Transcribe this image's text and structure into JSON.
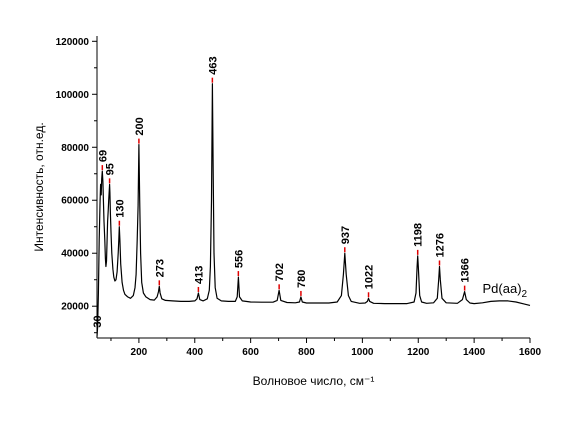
{
  "chart_data": {
    "type": "line",
    "title": "",
    "xlabel": "Волновое число, см⁻¹",
    "ylabel": "Интенсивность, отн.ед.",
    "xlim": [
      50,
      1600
    ],
    "ylim": [
      8000,
      122000
    ],
    "x_ticks": [
      200,
      400,
      600,
      800,
      1000,
      1200,
      1400,
      1600
    ],
    "x_tick_labels": [
      "200",
      "400",
      "600",
      "800",
      "1000",
      "1200",
      "1400",
      "1600"
    ],
    "y_ticks": [
      20000,
      40000,
      60000,
      80000,
      100000,
      120000
    ],
    "y_tick_labels": [
      "20000",
      "40000",
      "60000",
      "80000",
      "100000",
      "120000"
    ],
    "grid": false,
    "series_label": {
      "text": "Pd(aa)",
      "subscript": "2",
      "x": 1430,
      "y": 25000
    },
    "series": [
      {
        "points": [
          [
            50,
            8500
          ],
          [
            52,
            12000
          ],
          [
            55,
            25000
          ],
          [
            58,
            45000
          ],
          [
            61,
            60000
          ],
          [
            63,
            66000
          ],
          [
            65,
            62000
          ],
          [
            67,
            68000
          ],
          [
            69,
            71000
          ],
          [
            71,
            67000
          ],
          [
            73,
            60000
          ],
          [
            75,
            52000
          ],
          [
            78,
            45000
          ],
          [
            80,
            38000
          ],
          [
            82,
            35000
          ],
          [
            84,
            37000
          ],
          [
            86,
            45000
          ],
          [
            88,
            52000
          ],
          [
            90,
            56000
          ],
          [
            92,
            60000
          ],
          [
            94,
            64000
          ],
          [
            95,
            66000
          ],
          [
            96,
            63000
          ],
          [
            98,
            55000
          ],
          [
            100,
            48000
          ],
          [
            103,
            40000
          ],
          [
            107,
            34000
          ],
          [
            110,
            31000
          ],
          [
            114,
            29500
          ],
          [
            118,
            30000
          ],
          [
            122,
            33000
          ],
          [
            126,
            40000
          ],
          [
            128,
            45000
          ],
          [
            130,
            50000
          ],
          [
            132,
            45000
          ],
          [
            135,
            36000
          ],
          [
            140,
            29000
          ],
          [
            145,
            26000
          ],
          [
            150,
            24500
          ],
          [
            160,
            23500
          ],
          [
            170,
            23000
          ],
          [
            180,
            24000
          ],
          [
            186,
            27000
          ],
          [
            190,
            32000
          ],
          [
            194,
            45000
          ],
          [
            197,
            58000
          ],
          [
            200,
            81000
          ],
          [
            203,
            60000
          ],
          [
            206,
            40000
          ],
          [
            210,
            29000
          ],
          [
            216,
            25000
          ],
          [
            225,
            23500
          ],
          [
            240,
            22500
          ],
          [
            255,
            22300
          ],
          [
            265,
            23500
          ],
          [
            270,
            25500
          ],
          [
            273,
            27500
          ],
          [
            276,
            25000
          ],
          [
            282,
            22800
          ],
          [
            295,
            22200
          ],
          [
            320,
            22000
          ],
          [
            350,
            21800
          ],
          [
            380,
            21800
          ],
          [
            400,
            22000
          ],
          [
            408,
            22800
          ],
          [
            413,
            25000
          ],
          [
            418,
            22500
          ],
          [
            430,
            22000
          ],
          [
            445,
            22800
          ],
          [
            452,
            26000
          ],
          [
            456,
            35000
          ],
          [
            460,
            60000
          ],
          [
            463,
            104000
          ],
          [
            466,
            70000
          ],
          [
            469,
            40000
          ],
          [
            473,
            27000
          ],
          [
            480,
            23000
          ],
          [
            495,
            22000
          ],
          [
            520,
            21800
          ],
          [
            545,
            21800
          ],
          [
            552,
            23500
          ],
          [
            556,
            31000
          ],
          [
            560,
            23500
          ],
          [
            570,
            22000
          ],
          [
            600,
            21600
          ],
          [
            640,
            21500
          ],
          [
            680,
            21500
          ],
          [
            695,
            22200
          ],
          [
            702,
            26000
          ],
          [
            708,
            22200
          ],
          [
            730,
            21400
          ],
          [
            760,
            21300
          ],
          [
            775,
            21600
          ],
          [
            780,
            23500
          ],
          [
            785,
            21600
          ],
          [
            800,
            21200
          ],
          [
            840,
            21200
          ],
          [
            880,
            21200
          ],
          [
            910,
            21600
          ],
          [
            925,
            24000
          ],
          [
            932,
            32000
          ],
          [
            937,
            40000
          ],
          [
            942,
            32000
          ],
          [
            950,
            24000
          ],
          [
            960,
            21800
          ],
          [
            990,
            21100
          ],
          [
            1010,
            21200
          ],
          [
            1018,
            21800
          ],
          [
            1022,
            23000
          ],
          [
            1026,
            21800
          ],
          [
            1040,
            21100
          ],
          [
            1080,
            21000
          ],
          [
            1120,
            21000
          ],
          [
            1160,
            21000
          ],
          [
            1185,
            21600
          ],
          [
            1192,
            25000
          ],
          [
            1196,
            35000
          ],
          [
            1198,
            39000
          ],
          [
            1200,
            35000
          ],
          [
            1205,
            24000
          ],
          [
            1212,
            21600
          ],
          [
            1230,
            21100
          ],
          [
            1255,
            21300
          ],
          [
            1268,
            23000
          ],
          [
            1273,
            30000
          ],
          [
            1276,
            35000
          ],
          [
            1279,
            30000
          ],
          [
            1285,
            23000
          ],
          [
            1300,
            21300
          ],
          [
            1340,
            21100
          ],
          [
            1358,
            22500
          ],
          [
            1366,
            25500
          ],
          [
            1372,
            22500
          ],
          [
            1385,
            21200
          ],
          [
            1400,
            21000
          ],
          [
            1430,
            21300
          ],
          [
            1460,
            21800
          ],
          [
            1490,
            22000
          ],
          [
            1520,
            22000
          ],
          [
            1550,
            21600
          ],
          [
            1580,
            20800
          ],
          [
            1600,
            20300
          ]
        ]
      }
    ],
    "annotations": [
      {
        "text": "30",
        "x": 30,
        "mark_x": 50,
        "y": 8500,
        "marker": false
      },
      {
        "text": "69",
        "x": 69,
        "y": 71000,
        "marker": true
      },
      {
        "text": "95",
        "x": 95,
        "y": 66000,
        "marker": true
      },
      {
        "text": "130",
        "x": 130,
        "y": 50000,
        "marker": true
      },
      {
        "text": "200",
        "x": 200,
        "y": 81000,
        "marker": true
      },
      {
        "text": "273",
        "x": 273,
        "y": 27500,
        "marker": true
      },
      {
        "text": "413",
        "x": 413,
        "y": 25000,
        "marker": true
      },
      {
        "text": "463",
        "x": 463,
        "y": 104000,
        "marker": true
      },
      {
        "text": "556",
        "x": 556,
        "y": 31000,
        "marker": true
      },
      {
        "text": "702",
        "x": 702,
        "y": 26000,
        "marker": true
      },
      {
        "text": "780",
        "x": 780,
        "y": 23500,
        "marker": true
      },
      {
        "text": "937",
        "x": 937,
        "y": 40000,
        "marker": true
      },
      {
        "text": "1022",
        "x": 1022,
        "y": 23000,
        "marker": true
      },
      {
        "text": "1198",
        "x": 1198,
        "y": 39000,
        "marker": true
      },
      {
        "text": "1276",
        "x": 1276,
        "y": 35000,
        "marker": true
      },
      {
        "text": "1366",
        "x": 1366,
        "y": 25500,
        "marker": true
      }
    ],
    "colors": {
      "line": "#000000",
      "peak_marker": "#e00000",
      "axis": "#000000"
    }
  }
}
